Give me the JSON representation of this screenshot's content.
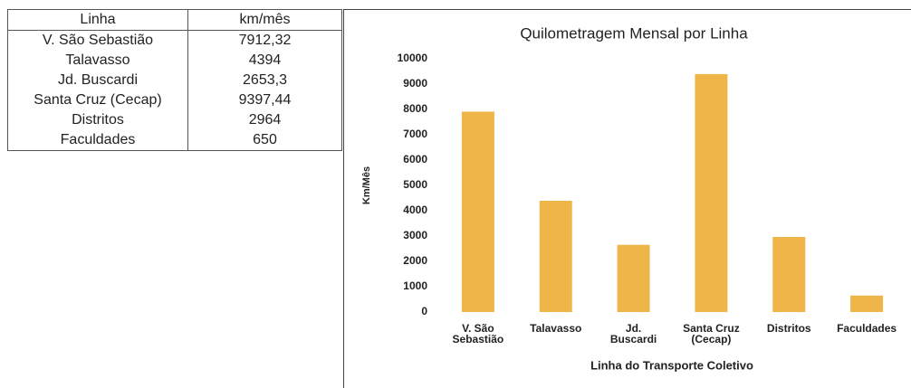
{
  "table": {
    "header": [
      "Linha",
      "km/mês"
    ],
    "rows": [
      [
        "V. São Sebastião",
        "7912,32"
      ],
      [
        "Talavasso",
        "4394"
      ],
      [
        "Jd. Buscardi",
        "2653,3"
      ],
      [
        "Santa Cruz (Cecap)",
        "9397,44"
      ],
      [
        "Distritos",
        "2964"
      ],
      [
        "Faculdades",
        "650"
      ]
    ]
  },
  "chart_data": {
    "type": "bar",
    "title": "Quilometragem Mensal por Linha",
    "x_label": "Linha do Transporte Coletivo",
    "y_label": "Km/Mês",
    "categories": [
      "V. São\nSebastião",
      "Talavasso",
      "Jd.\nBuscardi",
      "Santa Cruz\n(Cecap)",
      "Distritos",
      "Faculdades"
    ],
    "values": [
      7912.32,
      4394,
      2653.3,
      9397.44,
      2964,
      650
    ],
    "color": "#f0b548",
    "ylim": [
      0,
      10000
    ],
    "yticks": [
      0,
      1000,
      2000,
      3000,
      4000,
      5000,
      6000,
      7000,
      8000,
      9000,
      10000
    ],
    "grid": false
  }
}
